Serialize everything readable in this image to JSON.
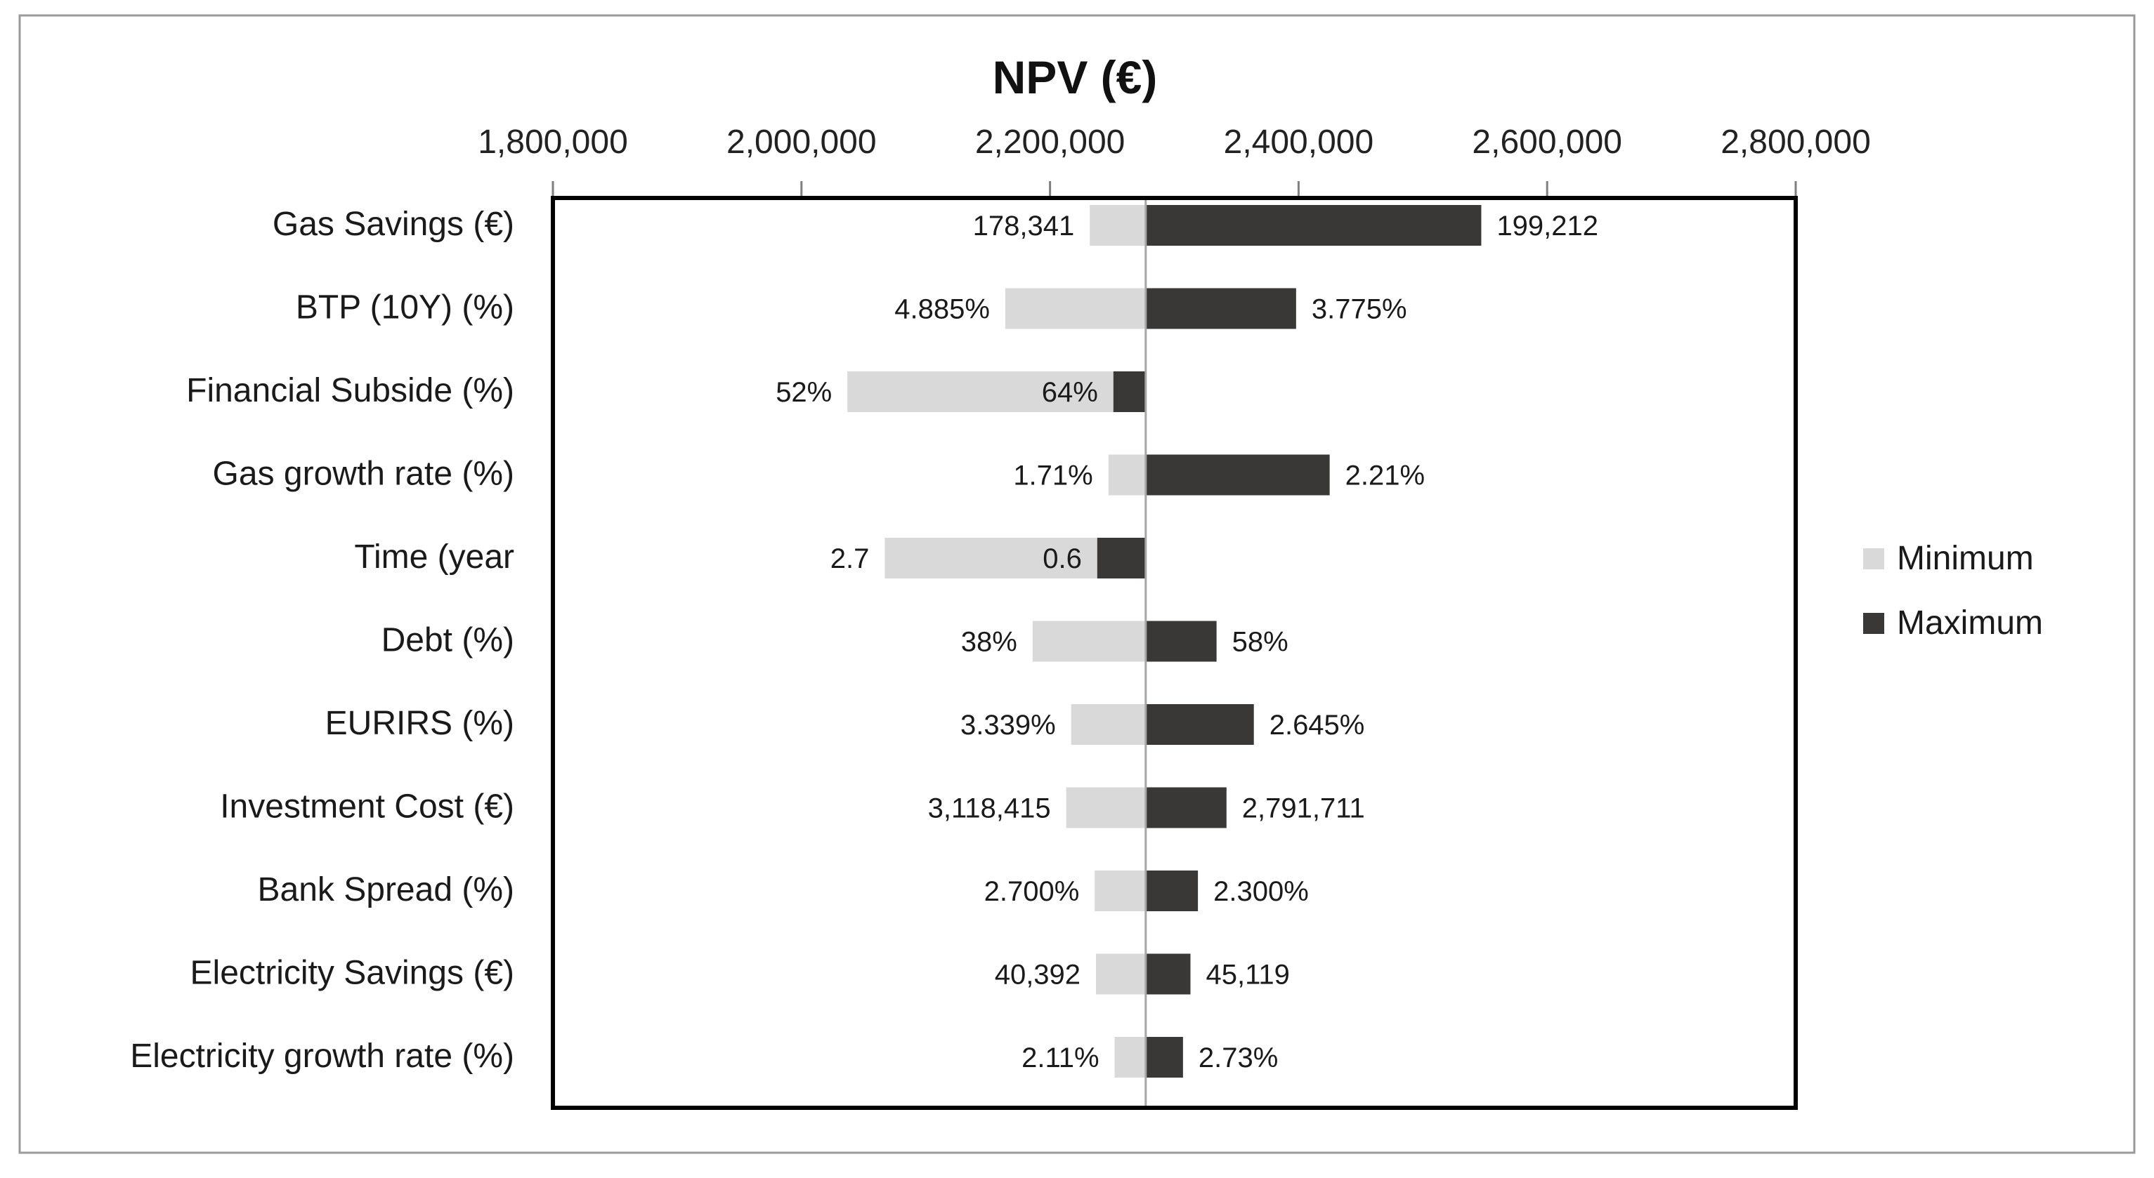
{
  "chart_data": {
    "type": "bar",
    "subtype": "tornado",
    "title": "NPV (€)",
    "xlabel": "",
    "ylabel": "",
    "axis_position": "top",
    "xlim": [
      1800000,
      2800000
    ],
    "tick_values": [
      1800000,
      2000000,
      2200000,
      2400000,
      2600000,
      2800000
    ],
    "tick_labels": [
      "1,800,000",
      "2,000,000",
      "2,200,000",
      "2,400,000",
      "2,600,000",
      "2,800,000"
    ],
    "base_value": 2277000,
    "categories": [
      "Gas Savings  (€)",
      "BTP (10Y) (%)",
      "Financial Subside (%)",
      "Gas growth rate (%)",
      "Time (year",
      "Debt (%)",
      "EURIRS (%)",
      "Investment Cost (€)",
      "Bank Spread (%)",
      "Electricity Savings (€)",
      "Electricity growth rate (%)"
    ],
    "series": [
      {
        "name": "Minimum",
        "color": "#d9d9d9",
        "npv": [
          2232000,
          2164000,
          2037000,
          2247000,
          2067000,
          2186000,
          2217000,
          2213000,
          2236000,
          2237000,
          2252000
        ],
        "labels": [
          "178,341",
          "4.885%",
          "52%",
          "1.71%",
          "2.7",
          "38%",
          "3.339%",
          "3,118,415",
          "2.700%",
          "40,392",
          "2.11%"
        ]
      },
      {
        "name": "Maximum",
        "color": "#3a3836",
        "npv": [
          2547000,
          2398000,
          2251000,
          2425000,
          2238000,
          2334000,
          2364000,
          2342000,
          2319000,
          2313000,
          2307000
        ],
        "labels": [
          "199,212",
          "3.775%",
          "64%",
          "2.21%",
          "0.6",
          "58%",
          "2.645%",
          "2,791,711",
          "2.300%",
          "45,119",
          "2.73%"
        ]
      }
    ],
    "legend": {
      "position": "right",
      "entries": [
        "Minimum",
        "Maximum"
      ]
    }
  }
}
